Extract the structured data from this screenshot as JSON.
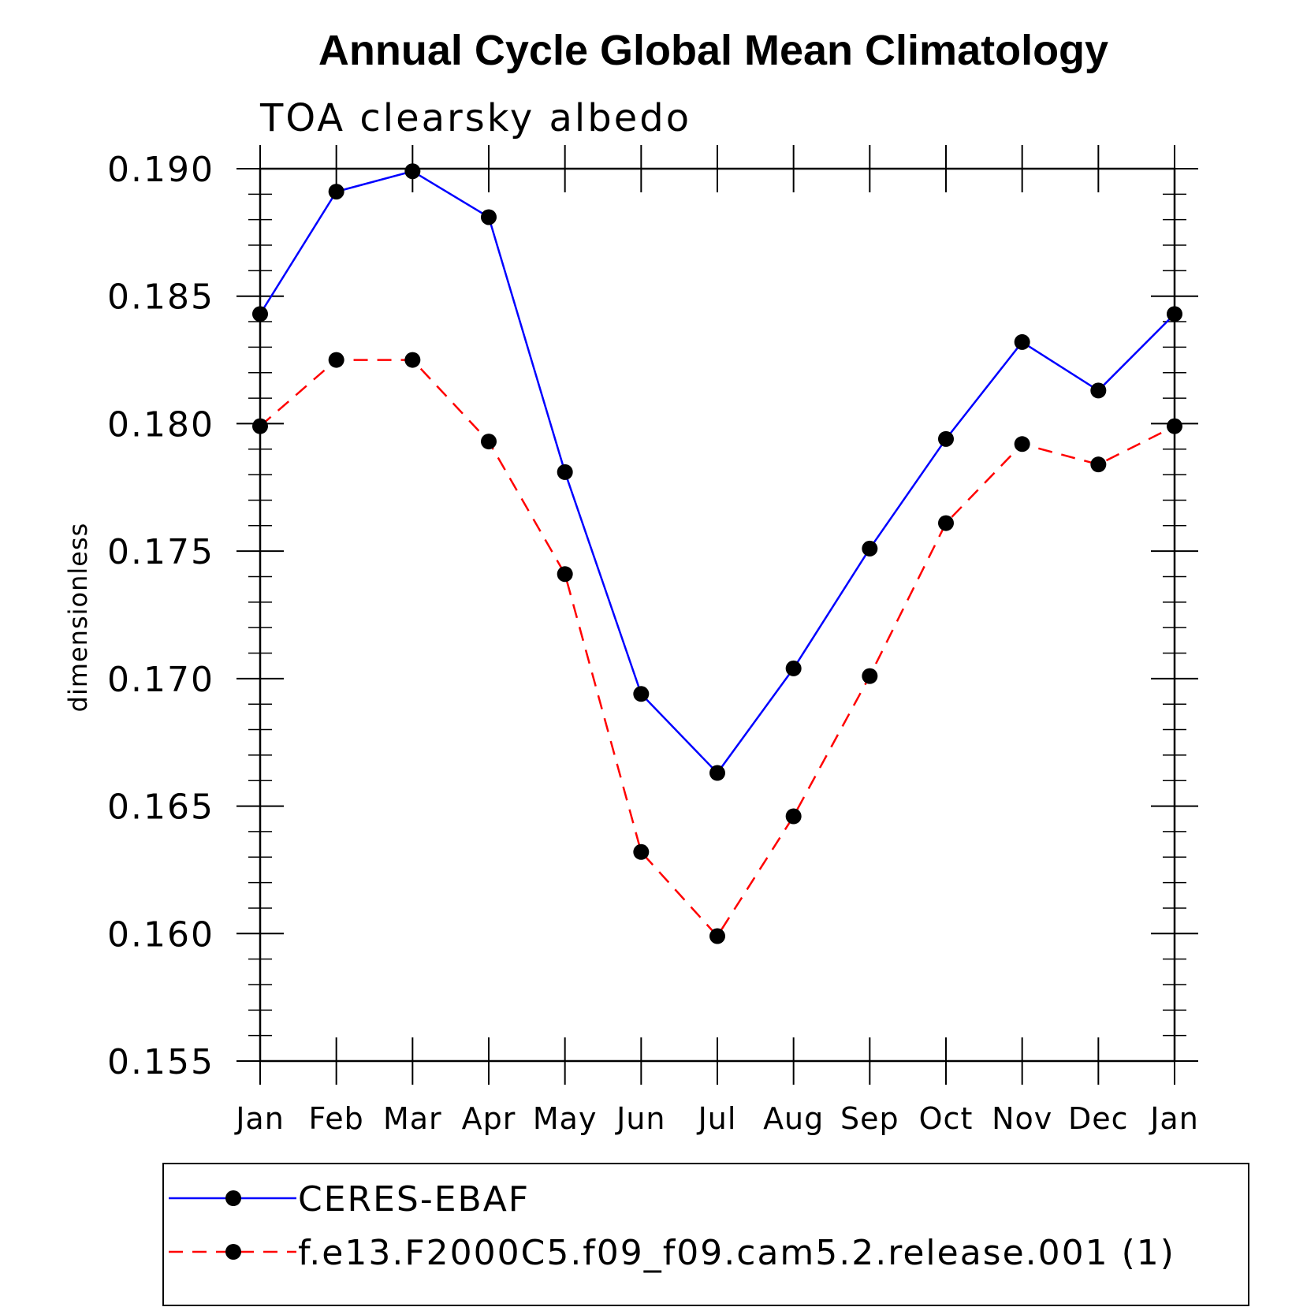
{
  "chart_data": {
    "type": "line",
    "title": "Annual Cycle Global Mean Climatology",
    "subtitle": "TOA clearsky albedo",
    "xlabel": "",
    "ylabel": "dimensionless",
    "categories": [
      "Jan",
      "Feb",
      "Mar",
      "Apr",
      "May",
      "Jun",
      "Jul",
      "Aug",
      "Sep",
      "Oct",
      "Nov",
      "Dec",
      "Jan"
    ],
    "ylim": [
      0.155,
      0.19
    ],
    "yticks": [
      "0.155",
      "0.160",
      "0.165",
      "0.170",
      "0.175",
      "0.180",
      "0.185",
      "0.190"
    ],
    "ytick_values": [
      0.155,
      0.16,
      0.165,
      0.17,
      0.175,
      0.18,
      0.185,
      0.19
    ],
    "minor_ytick_step": 0.001,
    "grid": false,
    "legend_position": "bottom",
    "series": [
      {
        "name": "CERES-EBAF",
        "color": "#0000ff",
        "dash": "solid",
        "marker": "filled-circle",
        "values": [
          0.1843,
          0.1891,
          0.1899,
          0.1881,
          0.1781,
          0.1694,
          0.1663,
          0.1704,
          0.1751,
          0.1794,
          0.1832,
          0.1813,
          0.1843
        ]
      },
      {
        "name": "f.e13.F2000C5.f09_f09.cam5.2.release.001 (1)",
        "color": "#ff0000",
        "dash": "dashed",
        "marker": "filled-circle",
        "values": [
          0.1799,
          0.1825,
          0.1825,
          0.1793,
          0.1741,
          0.1632,
          0.1599,
          0.1646,
          0.1701,
          0.1761,
          0.1792,
          0.1784,
          0.1799
        ]
      }
    ]
  }
}
